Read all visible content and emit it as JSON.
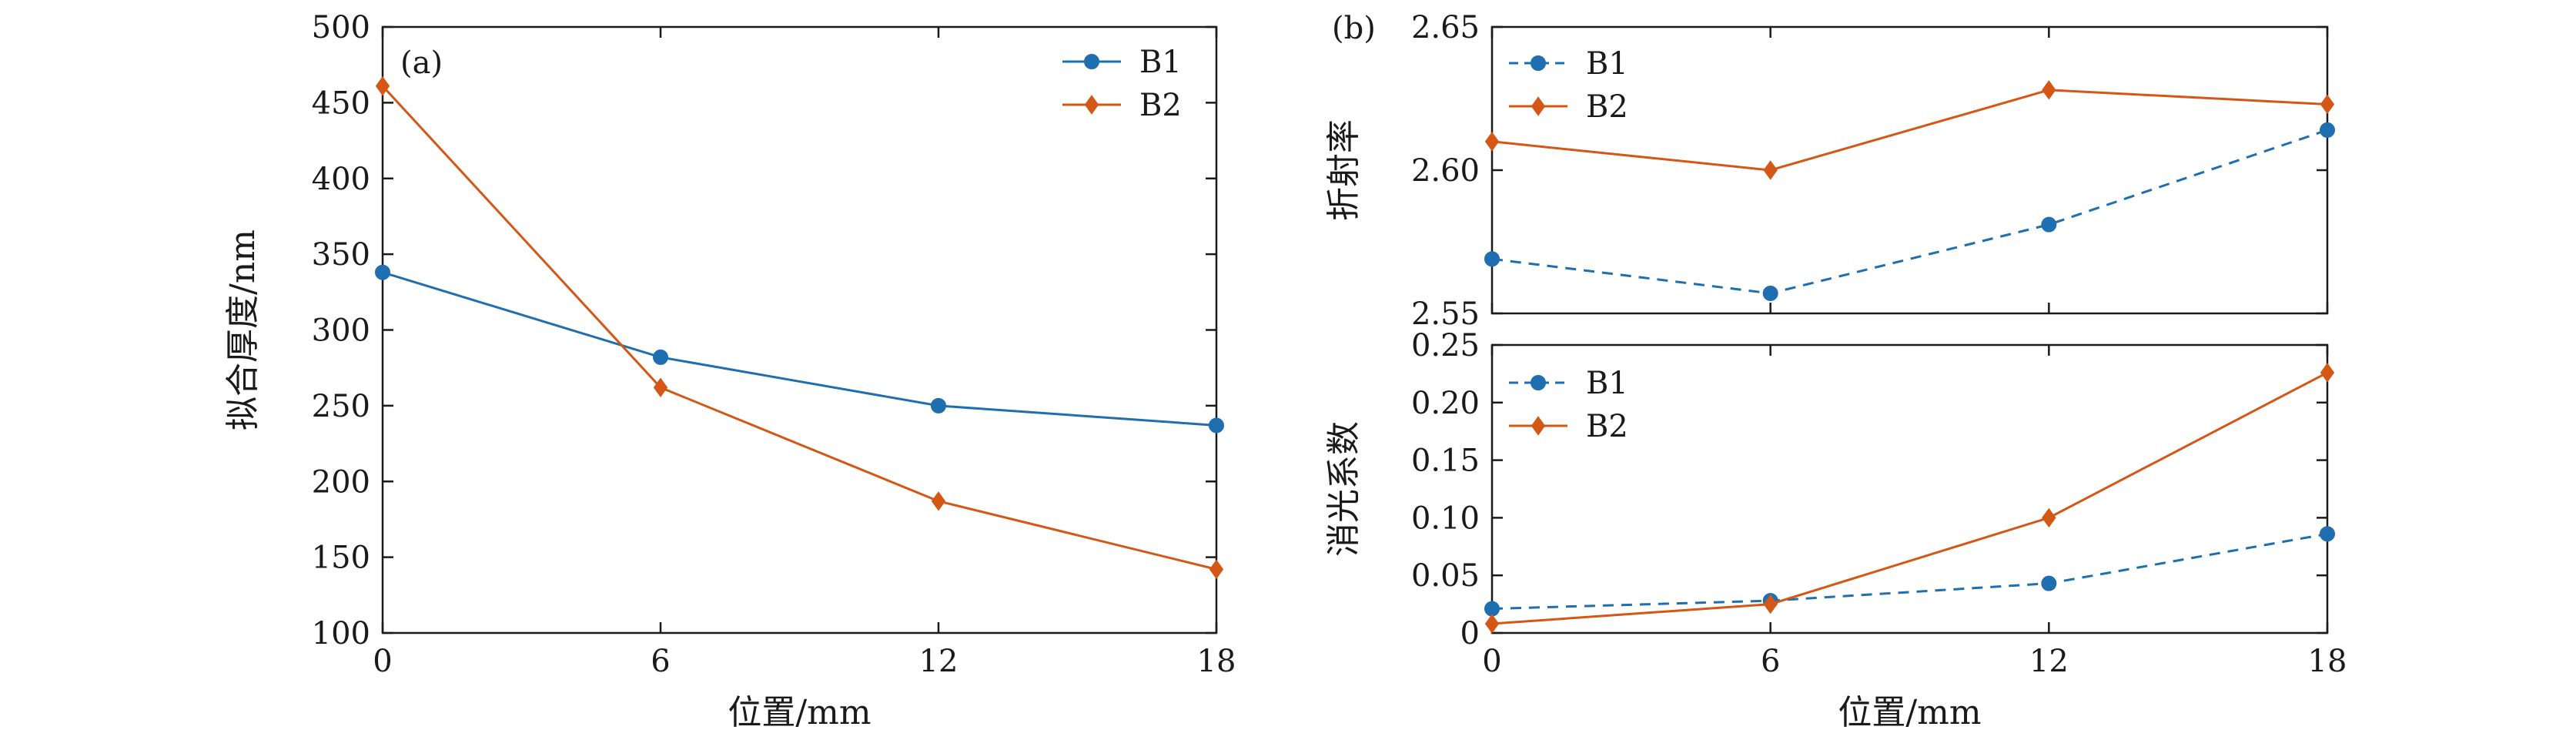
{
  "colors": {
    "B1": "#1f6fb0",
    "B2": "#d45716"
  },
  "chart_data": [
    {
      "panel": "(a)",
      "type": "line",
      "xlabel": "位置/mm",
      "ylabel": "拟合厚度/nm",
      "x": [
        0,
        6,
        12,
        18
      ],
      "xticks": [
        "0",
        "6",
        "12",
        "18"
      ],
      "xlim": [
        0,
        18
      ],
      "ylim": [
        100,
        500
      ],
      "yticks": [
        "100",
        "150",
        "200",
        "250",
        "300",
        "350",
        "400",
        "450",
        "500"
      ],
      "legend": "top-right",
      "series": [
        {
          "name": "B1",
          "values": [
            338,
            282,
            250,
            237
          ],
          "marker": "circle",
          "line": "solid",
          "color": "#1f6fb0"
        },
        {
          "name": "B2",
          "values": [
            461,
            262,
            187,
            142
          ],
          "marker": "diamond",
          "line": "solid",
          "color": "#d45716"
        }
      ]
    },
    {
      "panel": "(b)",
      "type": "line",
      "xlabel": "",
      "ylabel": "折射率",
      "x": [
        0,
        6,
        12,
        18
      ],
      "xlim": [
        0,
        18
      ],
      "ylim": [
        2.55,
        2.65
      ],
      "yticks": [
        "2.55",
        "2.60",
        "2.65"
      ],
      "legend": "top-left",
      "series": [
        {
          "name": "B1",
          "values": [
            2.569,
            2.557,
            2.581,
            2.614
          ],
          "marker": "circle",
          "line": "dashed",
          "color": "#1f6fb0"
        },
        {
          "name": "B2",
          "values": [
            2.61,
            2.6,
            2.628,
            2.623
          ],
          "marker": "diamond",
          "line": "solid",
          "color": "#d45716"
        }
      ]
    },
    {
      "panel": "",
      "type": "line",
      "xlabel": "位置/mm",
      "ylabel": "消光系数",
      "x": [
        0,
        6,
        12,
        18
      ],
      "xticks": [
        "0",
        "6",
        "12",
        "18"
      ],
      "xlim": [
        0,
        18
      ],
      "ylim": [
        0,
        0.25
      ],
      "yticks": [
        "0",
        "0.05",
        "0.10",
        "0.15",
        "0.20",
        "0.25"
      ],
      "legend": "top-left",
      "series": [
        {
          "name": "B1",
          "values": [
            0.021,
            0.028,
            0.043,
            0.086
          ],
          "marker": "circle",
          "line": "dashed",
          "color": "#1f6fb0"
        },
        {
          "name": "B2",
          "values": [
            0.008,
            0.025,
            0.1,
            0.226
          ],
          "marker": "diamond",
          "line": "solid",
          "color": "#d45716"
        }
      ]
    }
  ]
}
